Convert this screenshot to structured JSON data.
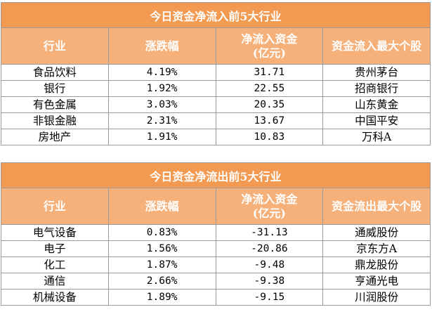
{
  "inflow": {
    "title": "今日资金净流入前5大行业",
    "headers": [
      "行业",
      "涨跌幅",
      "净流入资金\n(亿元)",
      "资金流入最大个股"
    ],
    "rows": [
      {
        "industry": "食品饮料",
        "change": "4.19%",
        "net": "31.71",
        "top_stock": "贵州茅台"
      },
      {
        "industry": "银行",
        "change": "1.92%",
        "net": "22.55",
        "top_stock": "招商银行"
      },
      {
        "industry": "有色金属",
        "change": "3.03%",
        "net": "20.35",
        "top_stock": "山东黄金"
      },
      {
        "industry": "非银金融",
        "change": "2.31%",
        "net": "13.67",
        "top_stock": "中国平安"
      },
      {
        "industry": "房地产",
        "change": "1.91%",
        "net": "10.83",
        "top_stock": "万科A"
      }
    ]
  },
  "outflow": {
    "title": "今日资金净流出前5大行业",
    "headers": [
      "行业",
      "涨跌幅",
      "净流入资金\n(亿元)",
      "资金流出最大个股"
    ],
    "rows": [
      {
        "industry": "电气设备",
        "change": "0.83%",
        "net": "-31.13",
        "top_stock": "通威股份"
      },
      {
        "industry": "电子",
        "change": "1.56%",
        "net": "-20.86",
        "top_stock": "京东方A"
      },
      {
        "industry": "化工",
        "change": "1.87%",
        "net": "-9.48",
        "top_stock": "鼎龙股份"
      },
      {
        "industry": "通信",
        "change": "2.66%",
        "net": "-9.38",
        "top_stock": "亨通光电"
      },
      {
        "industry": "机械设备",
        "change": "1.89%",
        "net": "-9.15",
        "top_stock": "川润股份"
      }
    ]
  }
}
